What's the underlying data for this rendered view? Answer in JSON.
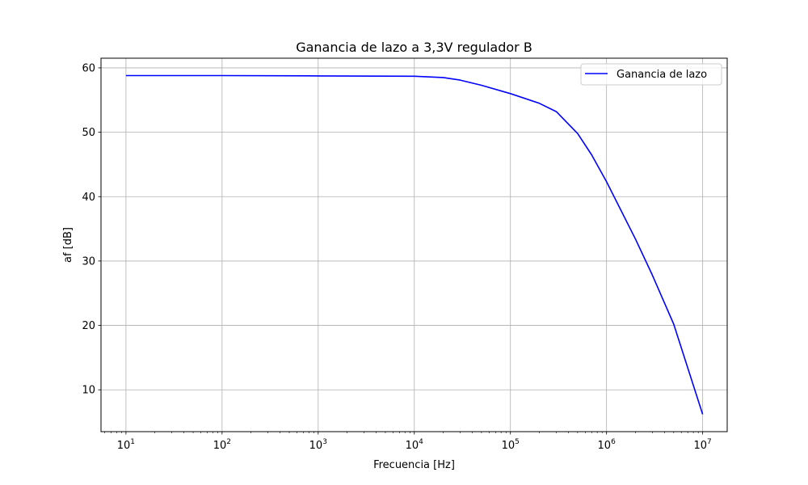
{
  "chart_data": {
    "type": "line",
    "title": "Ganancia de lazo a 3,3V regulador B",
    "xlabel": "Frecuencia [Hz]",
    "ylabel": "af [dB]",
    "xscale": "log",
    "xlim": [
      5.5,
      18000000
    ],
    "ylim": [
      3.5,
      61.5
    ],
    "grid": true,
    "legend_position": "top-right",
    "x_ticks": [
      {
        "value": 10,
        "base": "10",
        "exp": "1"
      },
      {
        "value": 100,
        "base": "10",
        "exp": "2"
      },
      {
        "value": 1000,
        "base": "10",
        "exp": "3"
      },
      {
        "value": 10000,
        "base": "10",
        "exp": "4"
      },
      {
        "value": 100000,
        "base": "10",
        "exp": "5"
      },
      {
        "value": 1000000,
        "base": "10",
        "exp": "6"
      },
      {
        "value": 10000000,
        "base": "10",
        "exp": "7"
      }
    ],
    "y_ticks": [
      10,
      20,
      30,
      40,
      50,
      60
    ],
    "series": [
      {
        "name": "Ganancia de lazo",
        "color": "#0000ff",
        "x": [
          10,
          100,
          1000,
          10000,
          20000,
          30000,
          50000,
          100000,
          200000,
          300000,
          500000,
          700000,
          1000000,
          2000000,
          3000000,
          5000000,
          10000000
        ],
        "y": [
          58.8,
          58.8,
          58.75,
          58.7,
          58.5,
          58.1,
          57.3,
          56.0,
          54.5,
          53.2,
          49.8,
          46.5,
          42.3,
          33.4,
          27.8,
          20.2,
          6.2
        ]
      }
    ]
  }
}
